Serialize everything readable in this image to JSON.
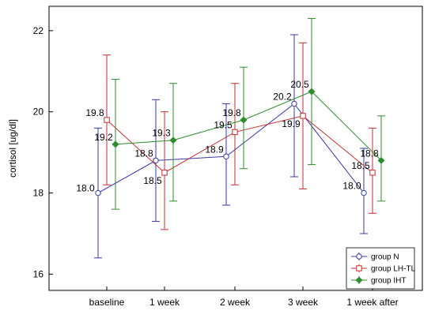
{
  "chart_data": {
    "type": "line",
    "title": "",
    "xlabel": "",
    "ylabel": "cortisol [ug/dl]",
    "categories": [
      "baseline",
      "1 week",
      "2 week",
      "3 week",
      "1 week after"
    ],
    "ylim": [
      15.6,
      22.6
    ],
    "yticks": [
      16,
      18,
      20,
      22
    ],
    "grid": false,
    "legend_position": "bottom-right",
    "series": [
      {
        "name": "group N",
        "color": "#3a3aa8",
        "marker": "circle",
        "values": [
          18.0,
          18.8,
          18.9,
          20.2,
          18.0
        ],
        "labels": [
          "18.0",
          "18.8",
          "18.9",
          "20.2",
          "18.0"
        ],
        "error_low": [
          16.4,
          17.3,
          17.7,
          18.4,
          17.0
        ],
        "error_high": [
          19.6,
          20.3,
          20.2,
          21.9,
          19.1
        ]
      },
      {
        "name": "group LH-TL",
        "color": "#c03030",
        "marker": "square",
        "values": [
          19.8,
          18.5,
          19.5,
          19.9,
          18.5
        ],
        "labels": [
          "19.8",
          "18.5",
          "19.5",
          "19.9",
          "18.5"
        ],
        "error_low": [
          18.2,
          17.1,
          18.2,
          18.1,
          17.5
        ],
        "error_high": [
          21.4,
          20.0,
          20.7,
          21.7,
          19.6
        ]
      },
      {
        "name": "group IHT",
        "color": "#2e8b2e",
        "marker": "diamond",
        "values": [
          19.2,
          19.3,
          19.8,
          20.5,
          18.8
        ],
        "labels": [
          "19.2",
          "19.3",
          "19.8",
          "20.5",
          "18.8"
        ],
        "error_low": [
          17.6,
          17.8,
          18.6,
          18.7,
          17.8
        ],
        "error_high": [
          20.8,
          20.7,
          21.1,
          22.3,
          19.9
        ]
      }
    ]
  }
}
